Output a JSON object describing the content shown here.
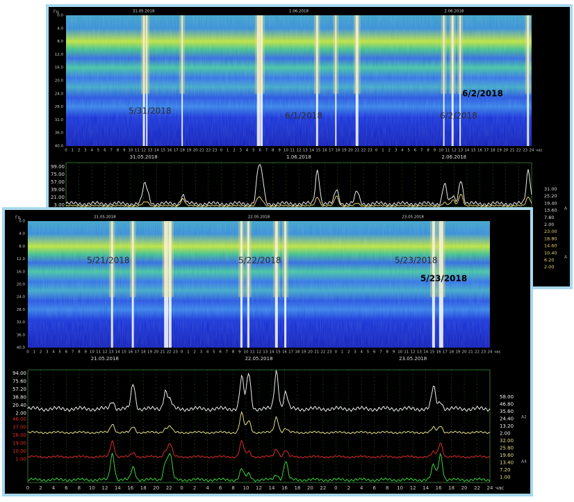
{
  "top_panel": {
    "freq_unit": "Гц",
    "freq_ticks": [
      "0.0",
      "4.0",
      "8.0",
      "12.0",
      "16.0",
      "20.0",
      "24.0",
      "28.0",
      "32.0",
      "36.0",
      "40.0"
    ],
    "dates": [
      "31.05.2018",
      "1.06.2018",
      "2.06.2018"
    ],
    "hours": [
      "0",
      "1",
      "2",
      "3",
      "4",
      "5",
      "6",
      "7",
      "8",
      "9",
      "10",
      "11",
      "12",
      "13",
      "14",
      "15",
      "16",
      "17",
      "18",
      "19",
      "20",
      "21",
      "22",
      "23"
    ],
    "hour_end": "24",
    "hour_unit": "час",
    "overlay_dates": [
      "5/31/2018",
      "6/1/2018",
      "6/2/2018"
    ],
    "overlay_bold": "6/2/2018",
    "graph_left_ticks": [
      "99.00",
      "75.00",
      "57.00",
      "39.00",
      "21.00",
      "3.00"
    ],
    "graph_right_ticks": [
      "31.00",
      "25.20",
      "19.40",
      "13.60",
      "7.80",
      "2.00",
      "23.00",
      "18.80",
      "14.60",
      "10.40",
      "6.20",
      "2.00"
    ],
    "channel_labels": [
      "A",
      "A"
    ]
  },
  "bottom_panel": {
    "freq_unit": "Гц",
    "freq_ticks": [
      "0.0",
      "4.0",
      "8.0",
      "12.0",
      "16.0",
      "20.0",
      "24.0",
      "28.0",
      "32.0",
      "36.0",
      "40.0"
    ],
    "dates": [
      "21.05.2018",
      "22.05.2018",
      "23.05.2018"
    ],
    "hours": [
      "0",
      "1",
      "2",
      "3",
      "4",
      "5",
      "6",
      "7",
      "8",
      "9",
      "10",
      "11",
      "12",
      "13",
      "14",
      "15",
      "16",
      "17",
      "18",
      "19",
      "20",
      "21",
      "22",
      "23"
    ],
    "hour_end": "24",
    "hour_unit": "час",
    "overlay_dates": [
      "5/21/2018",
      "5/22/2018",
      "5/23/2018"
    ],
    "overlay_bold": "5/23/2018",
    "graph_left_white": [
      "94.00",
      "75.60",
      "57.20",
      "38.80",
      "20.40",
      "2.00"
    ],
    "graph_left_red": [
      "46.00",
      "37.00",
      "28.00",
      "19.00",
      "10.00",
      "1.00"
    ],
    "graph_right_ticks": [
      "58.00",
      "46.80",
      "35.60",
      "24.40",
      "13.20",
      "2.00",
      "32.00",
      "25.80",
      "19.60",
      "13.40",
      "7.20",
      "1.00"
    ],
    "channel_labels": [
      "A2",
      "A4"
    ],
    "graph_hours": [
      "0",
      "2",
      "4",
      "6",
      "8",
      "10",
      "12",
      "14",
      "16",
      "18",
      "20",
      "22"
    ]
  }
}
